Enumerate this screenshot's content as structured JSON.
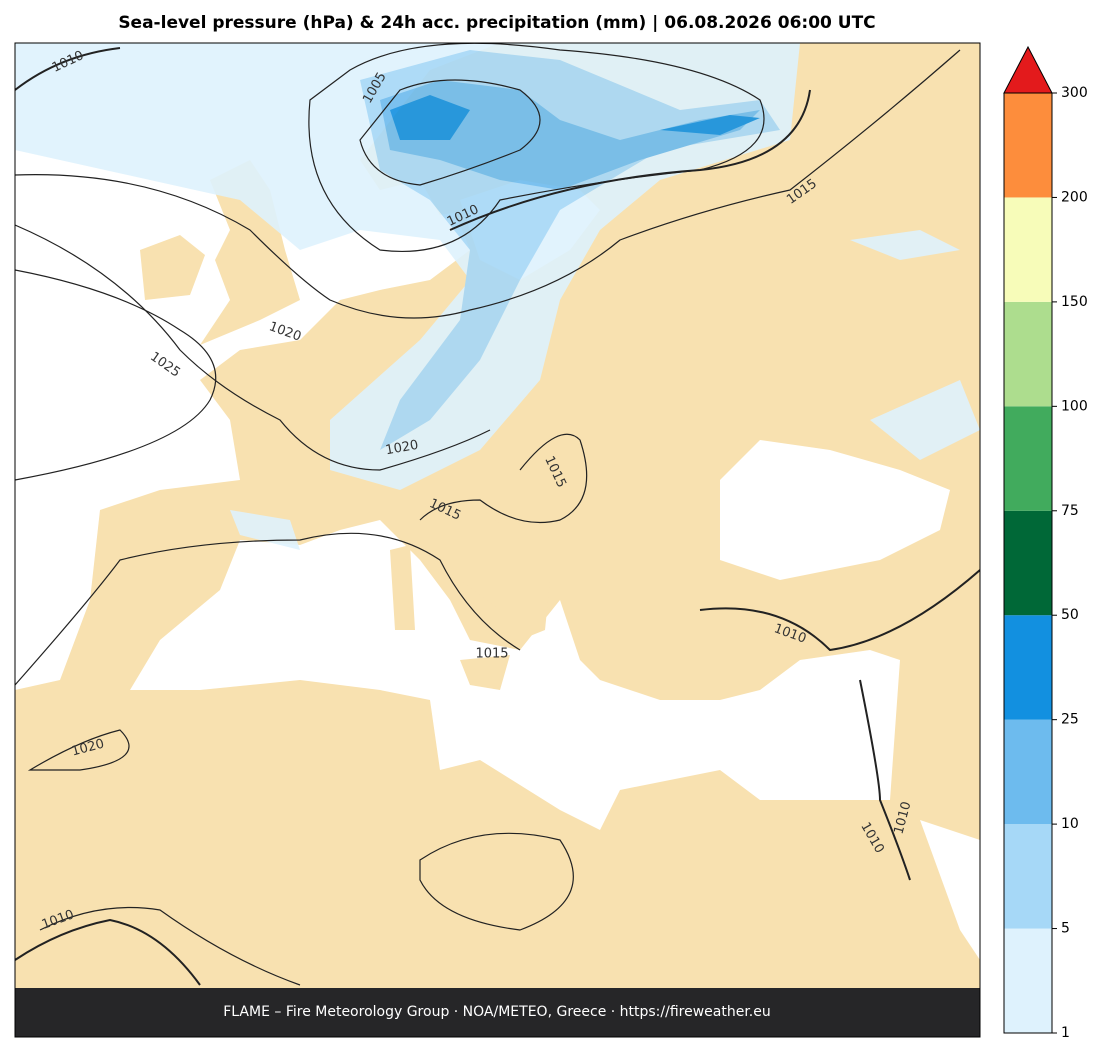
{
  "title": "Sea-level pressure (hPa) & 24h acc. precipitation (mm)  |  06.08.2026 06:00 UTC",
  "footer": "FLAME – Fire Meteorology Group · NOA/METEO, Greece · https://fireweather.eu",
  "contour_labels": [
    "1010",
    "1005",
    "1010",
    "1015",
    "1020",
    "1025",
    "1020",
    "1015",
    "1015",
    "1015",
    "1010",
    "1020",
    "1010",
    "1010",
    "1010"
  ],
  "colorbar": {
    "ticks": [
      1,
      5,
      10,
      25,
      50,
      75,
      100,
      150,
      200,
      300
    ],
    "colors": [
      "#def2fd",
      "#a6d8f7",
      "#6dbbee",
      "#1290e0",
      "#006837",
      "#41ab5d",
      "#addd8e",
      "#f7fcb9",
      "#fd8d3c"
    ],
    "extend_color": "#e31a1c"
  }
}
